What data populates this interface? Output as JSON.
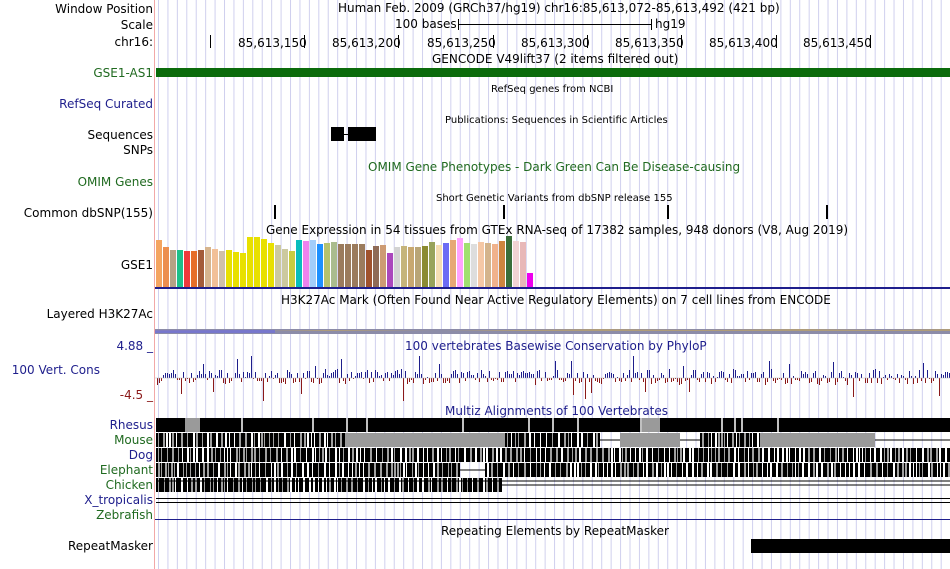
{
  "header": {
    "window_position_label": "Window Position",
    "scale_label": "Scale",
    "chrom_label": "chr16:",
    "assembly_title": "Human Feb. 2009 (GRCh37/hg19)   chr16:85,613,072-85,613,492 (421 bp)",
    "scale_text": "100 bases",
    "scale_db": "hg19",
    "ticks": [
      "85,613,150",
      "85,613,200",
      "85,613,250",
      "85,613,300",
      "85,613,350",
      "85,613,400",
      "85,613,450"
    ]
  },
  "tracks": {
    "gencode": {
      "title": "GENCODE V49lift37 (2 items filtered out)",
      "label": "GSE1-AS1"
    },
    "refseq": {
      "title": "RefSeq genes from NCBI",
      "label": "RefSeq Curated"
    },
    "publications": {
      "title": "Publications: Sequences in Scientific Articles",
      "label_1": "Sequences",
      "label_2": "SNPs"
    },
    "omim": {
      "title": "OMIM Gene Phenotypes - Dark Green Can Be Disease-causing",
      "label": "OMIM Genes"
    },
    "dbsnp": {
      "title": "Short Genetic Variants from dbSNP release 155",
      "label": "Common dbSNP(155)"
    },
    "gtex": {
      "title": "Gene Expression in 54 tissues from GTEx RNA-seq of 17382 samples, 948 donors (V8, Aug 2019)",
      "label": "GSE1",
      "values": [
        0.93,
        0.78,
        0.72,
        0.72,
        0.7,
        0.7,
        0.72,
        0.78,
        0.75,
        0.7,
        0.72,
        0.68,
        0.66,
        0.98,
        0.98,
        0.94,
        0.86,
        0.82,
        0.74,
        0.7,
        0.92,
        0.9,
        0.92,
        0.84,
        0.86,
        0.88,
        0.84,
        0.84,
        0.84,
        0.84,
        0.72,
        0.8,
        0.82,
        0.66,
        0.78,
        0.8,
        0.78,
        0.78,
        0.8,
        0.88,
        0.82,
        0.86,
        0.92,
        0.96,
        0.86,
        0.84,
        0.88,
        0.86,
        0.84,
        0.9,
        1.0,
        0.9,
        0.88,
        0.28
      ],
      "colors": [
        "#f4a460",
        "#ec8e4f",
        "#b6a285",
        "#1ec089",
        "#ee3b3b",
        "#e66e2a",
        "#a35b39",
        "#d6b48e",
        "#f2c098",
        "#d0c0a8",
        "#e8e000",
        "#e8e000",
        "#e8e000",
        "#e8e000",
        "#e8e000",
        "#e8e000",
        "#e8e000",
        "#ccc99f",
        "#ccc99f",
        "#c8cc40",
        "#08bdbd",
        "#ee82ee",
        "#a2cdfa",
        "#1e90ff",
        "#b6c26e",
        "#aabc8e",
        "#9b7b5d",
        "#9b7b5d",
        "#9b7b5d",
        "#9b7b5d",
        "#a0522d",
        "#8f6b57",
        "#cd9b74",
        "#ab47bc",
        "#d3d3d3",
        "#c5b47b",
        "#c8a870",
        "#b9a576",
        "#8b8b32",
        "#98a35b",
        "#f5deb3",
        "#6b6bf5",
        "#e6a875",
        "#ffa2ff",
        "#a0e070",
        "#dddddd",
        "#f5c8a6",
        "#d4b48c",
        "#f0b28c",
        "#cd853f",
        "#3a6e3a",
        "#f2d4d4",
        "#e8b8b8",
        "#ee00ee"
      ]
    },
    "h3k27ac": {
      "title": "H3K27Ac Mark (Often Found Near Active Regulatory Elements) on 7 cell lines from ENCODE",
      "label": "Layered H3K27Ac"
    },
    "conservation": {
      "title": "100 vertebrates Basewise Conservation by PhyloP",
      "label": "100 Vert. Cons",
      "max": "4.88 _",
      "min": "-4.5 _"
    },
    "multiz": {
      "title": "Multiz Alignments of 100 Vertebrates",
      "species": [
        {
          "name": "Rhesus",
          "color": "#1e1e8c"
        },
        {
          "name": "Mouse",
          "color": "#206a20"
        },
        {
          "name": "Dog",
          "color": "#1e1e8c"
        },
        {
          "name": "Elephant",
          "color": "#206a20"
        },
        {
          "name": "Chicken",
          "color": "#206a20"
        },
        {
          "name": "X_tropicalis",
          "color": "#1e1e8c"
        },
        {
          "name": "Zebrafish",
          "color": "#206a20"
        }
      ]
    },
    "repeatmasker": {
      "title": "Repeating Elements by RepeatMasker",
      "label": "RepeatMasker"
    }
  },
  "colors": {
    "gencode": "#0b6b0b",
    "refseq_label": "#1e1e8c",
    "omim": "#206a20",
    "grid": "#d0d0ee",
    "separator": "#f2a8a8",
    "phylop_pos": "#1e1e8c",
    "phylop_neg": "#8b1a1a",
    "conservation_label": "#1e1e8c",
    "conservation_min": "#8b1a1a"
  }
}
